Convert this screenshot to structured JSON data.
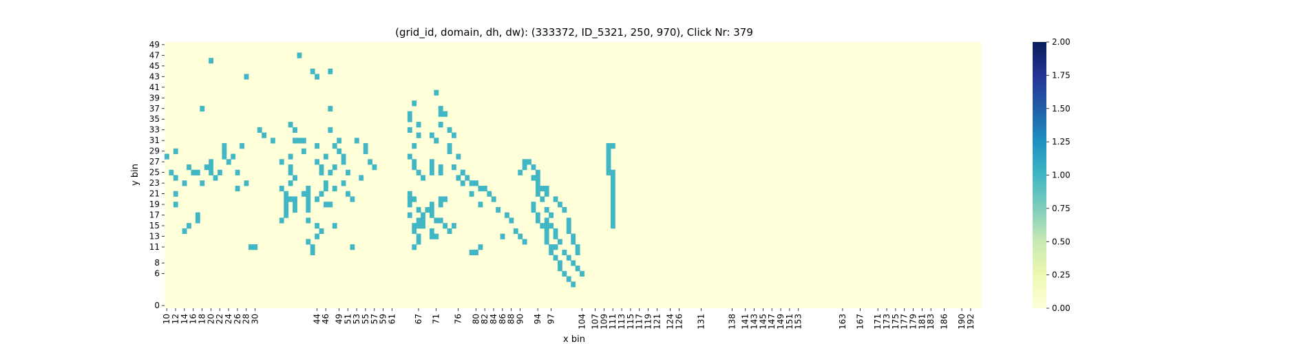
{
  "chart_data": {
    "type": "heatmap",
    "title": "(grid_id, domain, dh, dw): (333372, ID_5321, 250, 970), Click Nr: 379",
    "xlabel": "x bin",
    "ylabel": "y bin",
    "x_categories": [
      "10",
      "11",
      "12",
      "13",
      "14",
      "15",
      "16",
      "17",
      "18",
      "19",
      "20",
      "21",
      "22",
      "23",
      "24",
      "25",
      "26",
      "27",
      "28",
      "29",
      "30",
      "31",
      "32",
      "33",
      "34",
      "35",
      "36",
      "37",
      "38",
      "39",
      "40",
      "41",
      "42",
      "43",
      "44",
      "45",
      "46",
      "47",
      "48",
      "49",
      "50",
      "51",
      "52",
      "53",
      "54",
      "55",
      "56",
      "57",
      "58",
      "59",
      "60",
      "61",
      "62",
      "63",
      "64",
      "65",
      "66",
      "67",
      "68",
      "69",
      "70",
      "71",
      "72",
      "73",
      "74",
      "75",
      "76",
      "77",
      "78",
      "79",
      "80",
      "81",
      "82",
      "83",
      "84",
      "85",
      "86",
      "87",
      "88",
      "89",
      "90",
      "91",
      "92",
      "93",
      "94",
      "95",
      "96",
      "97",
      "98",
      "99",
      "100",
      "101",
      "102",
      "103",
      "104",
      "105",
      "106",
      "107",
      "108",
      "109",
      "110",
      "111",
      "112",
      "113",
      "114",
      "115",
      "116",
      "117",
      "118",
      "119",
      "120",
      "121",
      "122",
      "123",
      "124",
      "125",
      "126",
      "127",
      "128",
      "129",
      "130",
      "131",
      "132",
      "133",
      "134",
      "135",
      "136",
      "137",
      "138",
      "139",
      "140",
      "141",
      "142",
      "143",
      "144",
      "145",
      "146",
      "147",
      "148",
      "149",
      "150",
      "151",
      "152",
      "153",
      "154",
      "155",
      "156",
      "157",
      "158",
      "159",
      "160",
      "161",
      "162",
      "163",
      "164",
      "165",
      "166",
      "167",
      "168",
      "169",
      "170",
      "171",
      "172",
      "173",
      "174",
      "175",
      "176",
      "177",
      "178",
      "179",
      "180",
      "181",
      "182",
      "183",
      "184",
      "185",
      "186",
      "187",
      "188",
      "189",
      "190",
      "191",
      "192",
      "193",
      "194"
    ],
    "x_tick_labels": [
      "10",
      "12",
      "14",
      "16",
      "18",
      "20",
      "22",
      "24",
      "26",
      "28",
      "30",
      "44",
      "46",
      "49",
      "51",
      "53",
      "55",
      "57",
      "59",
      "61",
      "67",
      "71",
      "76",
      "80",
      "82",
      "84",
      "86",
      "88",
      "90",
      "94",
      "97",
      "104",
      "107",
      "109",
      "111",
      "113",
      "115",
      "117",
      "119",
      "121",
      "124",
      "126",
      "131",
      "138",
      "141",
      "143",
      "145",
      "147",
      "149",
      "151",
      "153",
      "163",
      "167",
      "171",
      "173",
      "175",
      "177",
      "179",
      "181",
      "183",
      "186",
      "190",
      "192"
    ],
    "y_categories": [
      "0",
      "1",
      "2",
      "3",
      "4",
      "5",
      "6",
      "7",
      "8",
      "9",
      "10",
      "11",
      "12",
      "13",
      "14",
      "15",
      "16",
      "17",
      "18",
      "19",
      "20",
      "21",
      "22",
      "23",
      "24",
      "25",
      "26",
      "27",
      "28",
      "29",
      "30",
      "31",
      "32",
      "33",
      "34",
      "35",
      "36",
      "37",
      "38",
      "39",
      "40",
      "41",
      "42",
      "43",
      "44",
      "45",
      "46",
      "47",
      "48",
      "49"
    ],
    "y_tick_labels": [
      "49",
      "47",
      "45",
      "43",
      "41",
      "39",
      "37",
      "35",
      "33",
      "31",
      "29",
      "27",
      "25",
      "23",
      "21",
      "19",
      "17",
      "15",
      "13",
      "11",
      "8",
      "6",
      "0"
    ],
    "colorbar": {
      "min": 0.0,
      "max": 2.0,
      "ticks": [
        "0.00",
        "0.25",
        "0.50",
        "0.75",
        "1.00",
        "1.25",
        "1.50",
        "1.75",
        "2.00"
      ],
      "colormap": "YlGnBu"
    },
    "colors": {
      "zero": "#ffffd9",
      "one": "#41b6c4",
      "two": "#081d58"
    },
    "grid": false,
    "cells_value_1": [
      [
        0,
        28
      ],
      [
        1,
        25
      ],
      [
        2,
        24
      ],
      [
        2,
        29
      ],
      [
        2,
        21
      ],
      [
        2,
        19
      ],
      [
        4,
        23
      ],
      [
        5,
        26
      ],
      [
        5,
        15
      ],
      [
        4,
        14
      ],
      [
        7,
        17
      ],
      [
        7,
        16
      ],
      [
        6,
        25
      ],
      [
        7,
        25
      ],
      [
        8,
        37
      ],
      [
        8,
        23
      ],
      [
        9,
        26
      ],
      [
        10,
        46
      ],
      [
        10,
        27
      ],
      [
        10,
        26
      ],
      [
        10,
        25
      ],
      [
        11,
        24
      ],
      [
        12,
        25
      ],
      [
        13,
        30
      ],
      [
        13,
        29
      ],
      [
        13,
        28
      ],
      [
        14,
        27
      ],
      [
        15,
        28
      ],
      [
        16,
        25
      ],
      [
        16,
        22
      ],
      [
        17,
        30
      ],
      [
        18,
        23
      ],
      [
        18,
        43
      ],
      [
        19,
        11
      ],
      [
        20,
        11
      ],
      [
        21,
        33
      ],
      [
        22,
        32
      ],
      [
        24,
        31
      ],
      [
        26,
        27
      ],
      [
        27,
        19
      ],
      [
        27,
        18
      ],
      [
        27,
        17
      ],
      [
        26,
        16
      ],
      [
        26,
        22
      ],
      [
        27,
        21
      ],
      [
        27,
        20
      ],
      [
        28,
        34
      ],
      [
        29,
        33
      ],
      [
        29,
        31
      ],
      [
        28,
        28
      ],
      [
        28,
        26
      ],
      [
        28,
        25
      ],
      [
        28,
        23
      ],
      [
        29,
        24
      ],
      [
        28,
        20
      ],
      [
        29,
        20
      ],
      [
        29,
        19
      ],
      [
        29,
        18
      ],
      [
        30,
        47
      ],
      [
        30,
        31
      ],
      [
        31,
        31
      ],
      [
        31,
        29
      ],
      [
        31,
        21
      ],
      [
        32,
        22
      ],
      [
        32,
        21
      ],
      [
        32,
        20
      ],
      [
        32,
        19
      ],
      [
        32,
        18
      ],
      [
        32,
        16
      ],
      [
        33,
        44
      ],
      [
        34,
        43
      ],
      [
        34,
        30
      ],
      [
        34,
        27
      ],
      [
        35,
        25
      ],
      [
        36,
        23
      ],
      [
        36,
        22
      ],
      [
        35,
        21
      ],
      [
        34,
        20
      ],
      [
        36,
        19
      ],
      [
        34,
        15
      ],
      [
        35,
        14
      ],
      [
        34,
        13
      ],
      [
        32,
        12
      ],
      [
        33,
        11
      ],
      [
        33,
        10
      ],
      [
        35,
        26
      ],
      [
        36,
        28
      ],
      [
        37,
        25
      ],
      [
        38,
        30
      ],
      [
        38,
        26
      ],
      [
        37,
        19
      ],
      [
        38,
        15
      ],
      [
        37,
        37
      ],
      [
        37,
        44
      ],
      [
        37,
        33
      ],
      [
        40,
        27
      ],
      [
        41,
        25
      ],
      [
        40,
        23
      ],
      [
        39,
        31
      ],
      [
        39,
        29
      ],
      [
        40,
        28
      ],
      [
        41,
        21
      ],
      [
        42,
        20
      ],
      [
        38,
        22
      ],
      [
        42,
        11
      ],
      [
        43,
        31
      ],
      [
        45,
        29
      ],
      [
        46,
        27
      ],
      [
        47,
        26
      ],
      [
        45,
        30
      ],
      [
        44,
        24
      ],
      [
        55,
        36
      ],
      [
        55,
        35
      ],
      [
        56,
        38
      ],
      [
        55,
        33
      ],
      [
        57,
        34
      ],
      [
        57,
        32
      ],
      [
        56,
        30
      ],
      [
        55,
        28
      ],
      [
        56,
        27
      ],
      [
        58,
        24
      ],
      [
        56,
        26
      ],
      [
        57,
        25
      ],
      [
        55,
        21
      ],
      [
        55,
        20
      ],
      [
        55,
        19
      ],
      [
        56,
        20
      ],
      [
        57,
        18
      ],
      [
        55,
        17
      ],
      [
        57,
        15
      ],
      [
        58,
        15
      ],
      [
        56,
        15
      ],
      [
        56,
        14
      ],
      [
        58,
        16
      ],
      [
        57,
        16
      ],
      [
        57,
        13
      ],
      [
        57,
        12
      ],
      [
        56,
        11
      ],
      [
        58,
        17
      ],
      [
        59,
        18
      ],
      [
        60,
        19
      ],
      [
        61,
        40
      ],
      [
        62,
        37
      ],
      [
        63,
        36
      ],
      [
        64,
        33
      ],
      [
        65,
        32
      ],
      [
        64,
        30
      ],
      [
        65,
        26
      ],
      [
        66,
        24
      ],
      [
        67,
        25
      ],
      [
        68,
        24
      ],
      [
        69,
        23
      ],
      [
        70,
        23
      ],
      [
        72,
        22
      ],
      [
        73,
        21
      ],
      [
        74,
        20
      ],
      [
        71,
        19
      ],
      [
        75,
        18
      ],
      [
        77,
        17
      ],
      [
        78,
        16
      ],
      [
        79,
        14
      ],
      [
        80,
        13
      ],
      [
        81,
        12
      ],
      [
        62,
        36
      ],
      [
        62,
        34
      ],
      [
        61,
        31
      ],
      [
        64,
        29
      ],
      [
        66,
        28
      ],
      [
        67,
        23
      ],
      [
        71,
        22
      ],
      [
        69,
        21
      ],
      [
        60,
        14
      ],
      [
        60,
        18
      ],
      [
        60,
        17
      ],
      [
        61,
        16
      ],
      [
        62,
        16
      ],
      [
        60,
        13
      ],
      [
        61,
        13
      ],
      [
        64,
        14
      ],
      [
        63,
        15
      ],
      [
        65,
        15
      ],
      [
        62,
        19
      ],
      [
        60,
        26
      ],
      [
        60,
        27
      ],
      [
        60,
        25
      ],
      [
        62,
        26
      ],
      [
        62,
        25
      ],
      [
        60,
        32
      ],
      [
        61,
        31
      ],
      [
        62,
        20
      ],
      [
        63,
        20
      ],
      [
        67,
        25
      ],
      [
        69,
        10
      ],
      [
        70,
        10
      ],
      [
        71,
        11
      ],
      [
        76,
        13
      ],
      [
        80,
        25
      ],
      [
        81,
        27
      ],
      [
        81,
        26
      ],
      [
        82,
        27
      ],
      [
        83,
        26
      ],
      [
        84,
        25
      ],
      [
        83,
        24
      ],
      [
        84,
        23
      ],
      [
        85,
        22
      ],
      [
        86,
        22
      ],
      [
        86,
        21
      ],
      [
        88,
        20
      ],
      [
        89,
        19
      ],
      [
        90,
        18
      ],
      [
        91,
        16
      ],
      [
        91,
        15
      ],
      [
        91,
        14
      ],
      [
        92,
        13
      ],
      [
        92,
        12
      ],
      [
        93,
        11
      ],
      [
        93,
        10
      ],
      [
        85,
        20
      ],
      [
        86,
        18
      ],
      [
        87,
        17
      ],
      [
        86,
        16
      ],
      [
        87,
        15
      ],
      [
        88,
        14
      ],
      [
        88,
        13
      ],
      [
        89,
        12
      ],
      [
        88,
        11
      ],
      [
        90,
        10
      ],
      [
        91,
        9
      ],
      [
        92,
        8
      ],
      [
        93,
        7
      ],
      [
        94,
        6
      ],
      [
        84,
        24
      ],
      [
        84,
        22
      ],
      [
        84,
        21
      ],
      [
        83,
        19
      ],
      [
        83,
        18
      ],
      [
        84,
        17
      ],
      [
        84,
        16
      ],
      [
        85,
        15
      ],
      [
        86,
        15
      ],
      [
        86,
        14
      ],
      [
        86,
        13
      ],
      [
        86,
        12
      ],
      [
        87,
        11
      ],
      [
        87,
        10
      ],
      [
        88,
        9
      ],
      [
        89,
        8
      ],
      [
        89,
        7
      ],
      [
        90,
        6
      ],
      [
        91,
        5
      ],
      [
        92,
        4
      ],
      [
        100,
        30
      ],
      [
        101,
        30
      ],
      [
        100,
        29
      ],
      [
        100,
        28
      ],
      [
        100,
        27
      ],
      [
        100,
        26
      ],
      [
        100,
        25
      ],
      [
        101,
        25
      ],
      [
        101,
        24
      ],
      [
        101,
        23
      ],
      [
        101,
        22
      ],
      [
        101,
        21
      ],
      [
        101,
        20
      ],
      [
        101,
        19
      ],
      [
        101,
        18
      ],
      [
        101,
        17
      ],
      [
        101,
        16
      ],
      [
        101,
        15
      ]
    ]
  }
}
